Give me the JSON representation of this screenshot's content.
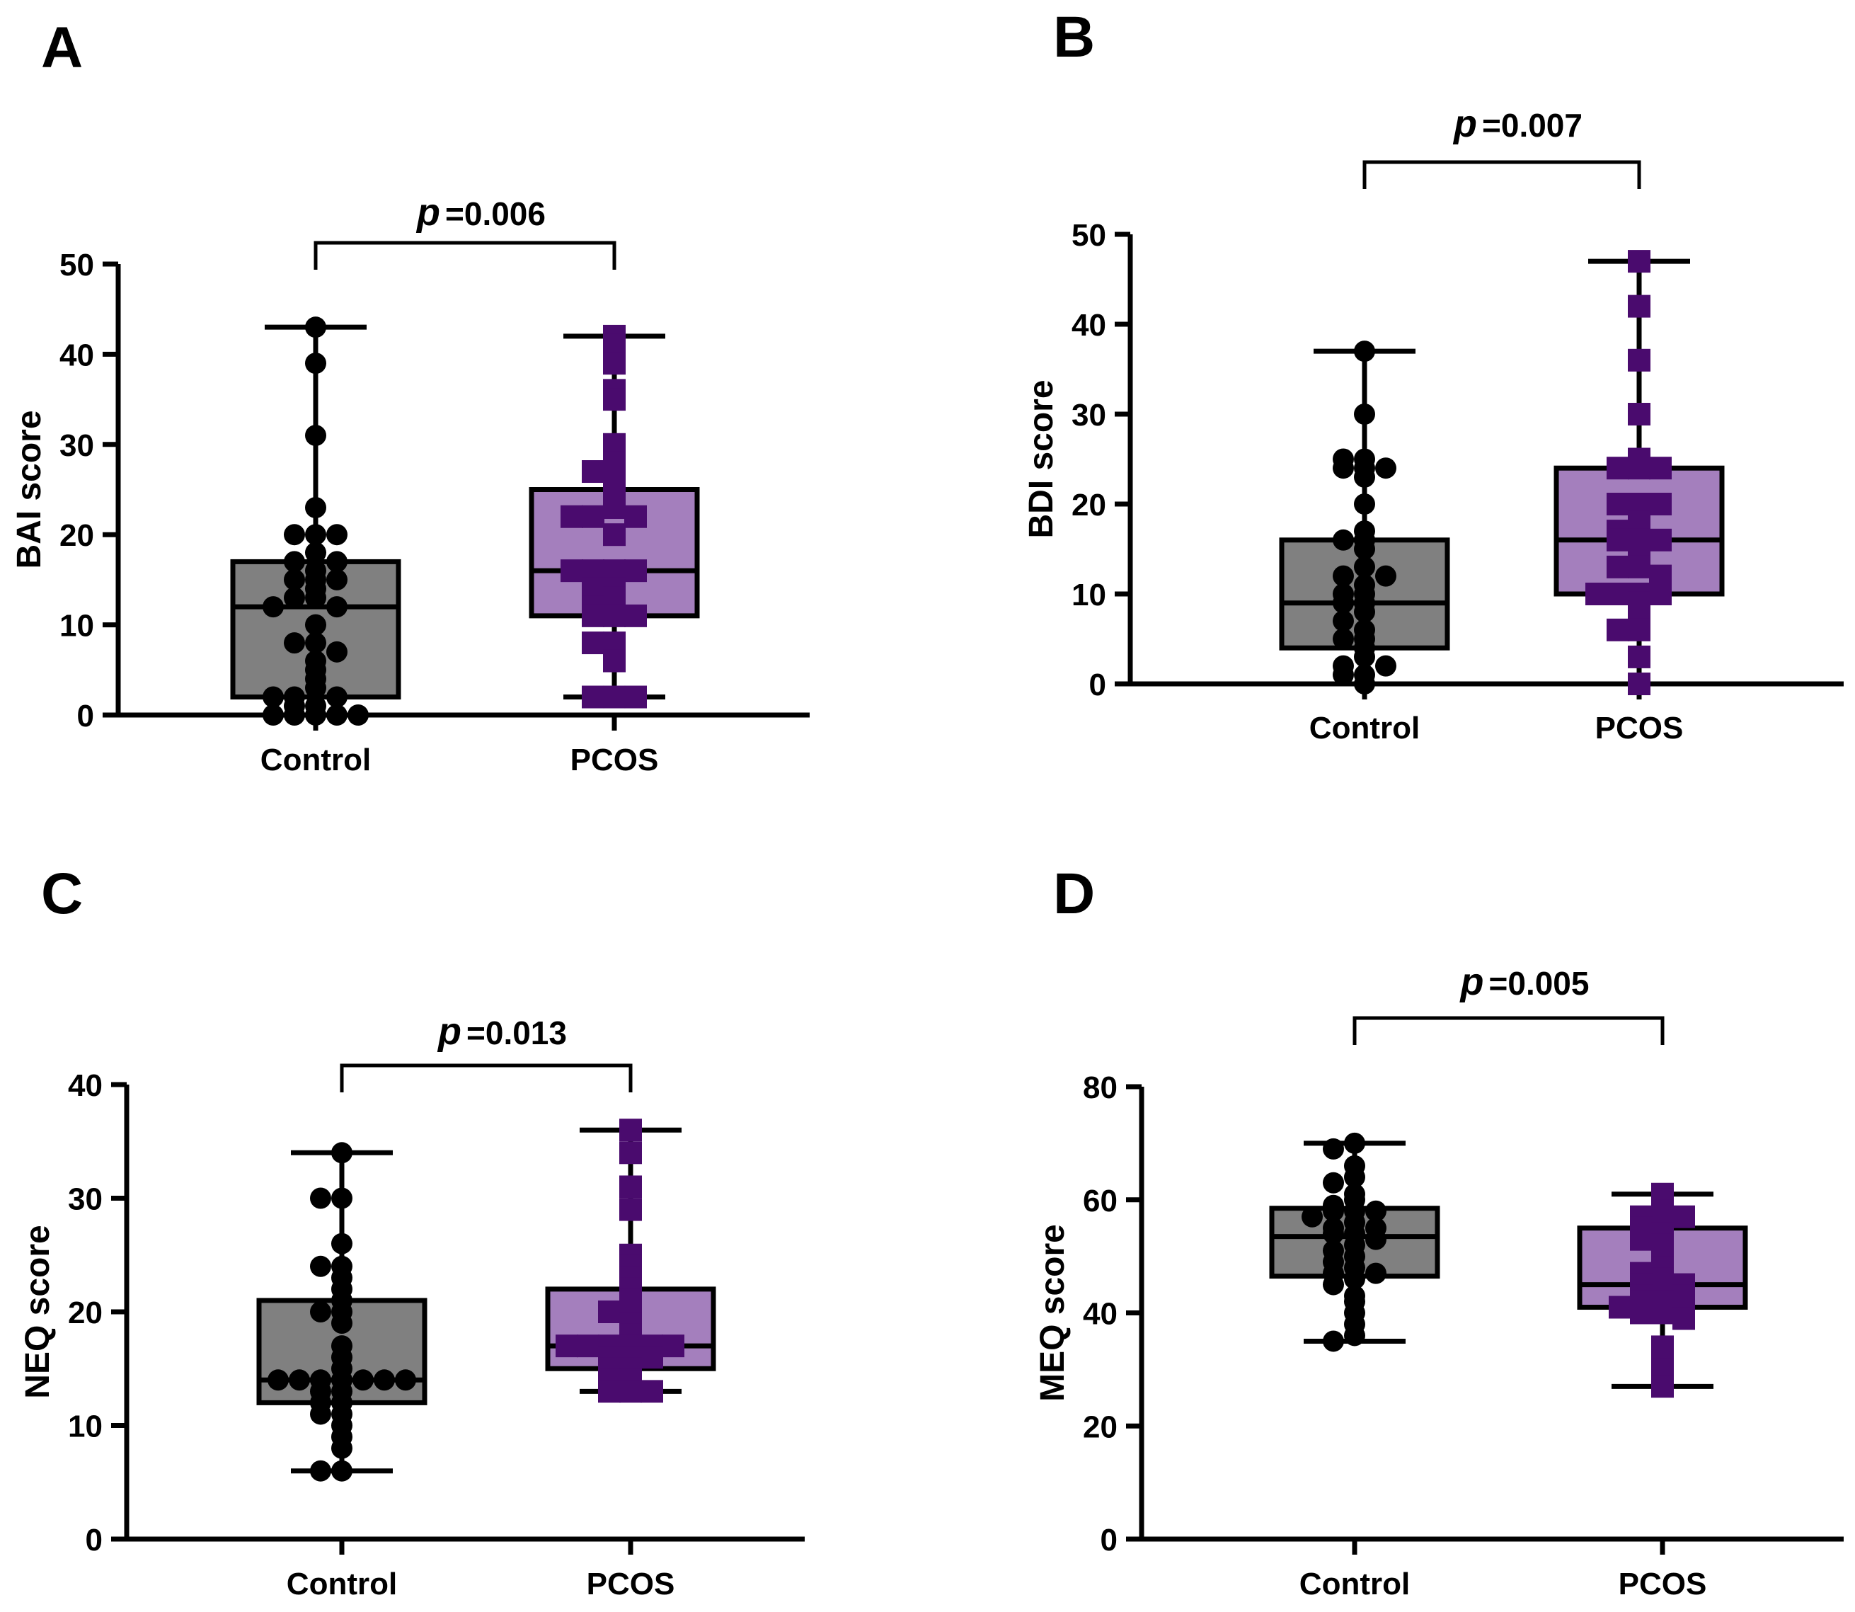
{
  "chart_data": [
    {
      "type": "box",
      "panel_label": "A",
      "ylabel": "BAI score",
      "ylim": [
        0,
        50
      ],
      "yticks": [
        0,
        10,
        20,
        30,
        40,
        50
      ],
      "categories": [
        "Control",
        "PCOS"
      ],
      "p_value": {
        "prefix": "p",
        "text": "=0.006"
      },
      "series": [
        {
          "name": "Control",
          "marker": "circle",
          "box": {
            "min": 0,
            "q1": 2,
            "median": 12,
            "q3": 17,
            "max": 43
          },
          "values": [
            43,
            39,
            31,
            23,
            20,
            20,
            20,
            18,
            17,
            17,
            16,
            15,
            15,
            15,
            14,
            13,
            13,
            12,
            12,
            10,
            8,
            8,
            7,
            6,
            5,
            4,
            3,
            2,
            2,
            2,
            1,
            1,
            0,
            0,
            0,
            0,
            0
          ]
        },
        {
          "name": "PCOS",
          "marker": "square",
          "box": {
            "min": 2,
            "q1": 11,
            "median": 16,
            "q3": 25,
            "max": 42
          },
          "values": [
            42,
            41,
            39,
            36,
            35,
            30,
            28,
            27,
            26,
            25,
            23,
            22,
            22,
            22,
            20,
            16,
            16,
            16,
            16,
            15,
            14,
            14,
            13,
            12,
            11,
            11,
            11,
            8,
            8,
            6,
            2,
            2,
            2
          ]
        }
      ]
    },
    {
      "type": "box",
      "panel_label": "B",
      "ylabel": "BDI score",
      "ylim": [
        0,
        50
      ],
      "yticks": [
        0,
        10,
        20,
        30,
        40,
        50
      ],
      "categories": [
        "Control",
        "PCOS"
      ],
      "p_value": {
        "prefix": "p",
        "text": "=0.007"
      },
      "series": [
        {
          "name": "Control",
          "marker": "circle",
          "box": {
            "min": 0,
            "q1": 4,
            "median": 9,
            "q3": 16,
            "max": 37
          },
          "values": [
            37,
            30,
            25,
            25,
            24,
            24,
            24,
            23,
            20,
            17,
            16,
            16,
            15,
            13,
            12,
            12,
            11,
            10,
            10,
            9,
            9,
            8,
            7,
            6,
            5,
            5,
            4,
            3,
            2,
            2,
            1,
            1,
            0
          ]
        },
        {
          "name": "PCOS",
          "marker": "square",
          "box": {
            "min": 0,
            "q1": 10,
            "median": 16,
            "q3": 24,
            "max": 47
          },
          "values": [
            47,
            42,
            36,
            30,
            25,
            24,
            24,
            24,
            20,
            20,
            20,
            18,
            17,
            16,
            16,
            16,
            15,
            14,
            13,
            13,
            12,
            10,
            10,
            10,
            10,
            9,
            7,
            6,
            6,
            3,
            0
          ]
        }
      ]
    },
    {
      "type": "box",
      "panel_label": "C",
      "ylabel": "NEQ score",
      "ylim": [
        0,
        40
      ],
      "yticks": [
        0,
        10,
        20,
        30,
        40
      ],
      "categories": [
        "Control",
        "PCOS"
      ],
      "p_value": {
        "prefix": "p",
        "text": "=0.013"
      },
      "series": [
        {
          "name": "Control",
          "marker": "circle",
          "box": {
            "min": 6,
            "q1": 12,
            "median": 14,
            "q3": 21,
            "max": 34
          },
          "values": [
            34,
            30,
            30,
            26,
            24,
            24,
            23,
            22,
            21,
            20,
            20,
            19,
            17,
            16,
            15,
            14,
            14,
            14,
            14,
            14,
            14,
            14,
            13,
            13,
            12,
            12,
            11,
            11,
            10,
            9,
            8,
            6,
            6
          ]
        },
        {
          "name": "PCOS",
          "marker": "square",
          "box": {
            "min": 13,
            "q1": 15,
            "median": 17,
            "q3": 22,
            "max": 36
          },
          "values": [
            36,
            34,
            31,
            29,
            25,
            24,
            23,
            22,
            21,
            20,
            20,
            19,
            18,
            17,
            17,
            17,
            17,
            17,
            17,
            16,
            16,
            16,
            15,
            15,
            14,
            14,
            13,
            13,
            13
          ]
        }
      ]
    },
    {
      "type": "box",
      "panel_label": "D",
      "ylabel": "MEQ score",
      "ylim": [
        0,
        80
      ],
      "yticks": [
        0,
        20,
        40,
        60,
        80
      ],
      "categories": [
        "Control",
        "PCOS"
      ],
      "p_value": {
        "prefix": "p",
        "text": "=0.005"
      },
      "series": [
        {
          "name": "Control",
          "marker": "circle",
          "box": {
            "min": 35,
            "q1": 46.5,
            "median": 53.5,
            "q3": 58.5,
            "max": 70
          },
          "values": [
            70,
            69,
            66,
            64,
            63,
            61,
            60,
            59,
            58,
            58,
            58,
            57,
            56,
            55,
            55,
            54,
            54,
            53,
            52,
            51,
            50,
            49,
            48,
            47,
            47,
            46,
            45,
            43,
            42,
            40,
            38,
            36,
            35
          ]
        },
        {
          "name": "PCOS",
          "marker": "square",
          "box": {
            "min": 27,
            "q1": 41,
            "median": 45,
            "q3": 55,
            "max": 61
          },
          "values": [
            61,
            60,
            58,
            57,
            57,
            56,
            55,
            54,
            53,
            52,
            50,
            48,
            47,
            46,
            45,
            45,
            44,
            43,
            43,
            42,
            42,
            41,
            41,
            40,
            40,
            39,
            34,
            32,
            30,
            27
          ]
        }
      ]
    }
  ],
  "colors": {
    "control_box": "#808080",
    "pcos_box": "#a47fbd",
    "control_marker": "#000000",
    "pcos_marker": "#4a0b6e",
    "line": "#000000"
  }
}
